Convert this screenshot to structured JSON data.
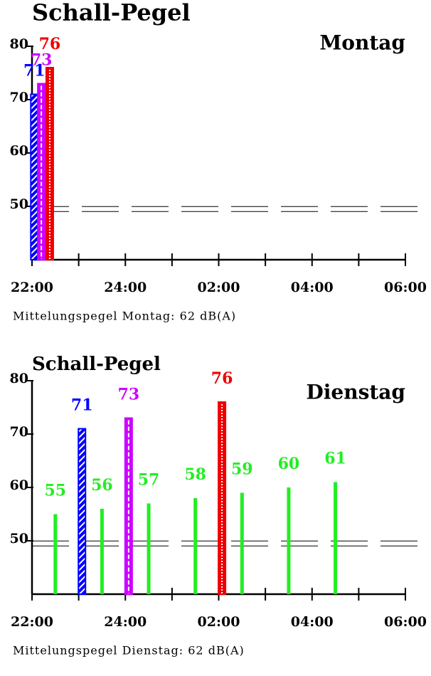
{
  "chart_data": [
    {
      "type": "bar",
      "title": "Schall-Pegel",
      "label": "Montag",
      "note": "Mittelungspegel Montag: 62 dB(A)",
      "xlim": [
        22,
        30
      ],
      "xticks": [
        {
          "value": 22,
          "label": "22:00"
        },
        {
          "value": 24,
          "label": "24:00"
        },
        {
          "value": 26,
          "label": "02:00"
        },
        {
          "value": 28,
          "label": "04:00"
        },
        {
          "value": 30,
          "label": "06:00"
        }
      ],
      "xminor": [
        23,
        25,
        27,
        29
      ],
      "ylim": [
        40,
        80
      ],
      "yticks": [
        50,
        60,
        70,
        80
      ],
      "reference_line": 49.5,
      "series": [
        {
          "color": "#0000ff",
          "style": "stripes",
          "x": [
            22.05
          ],
          "values": [
            71
          ]
        },
        {
          "color": "#cc00ff",
          "style": "dashes",
          "x": [
            22.2
          ],
          "values": [
            73
          ]
        },
        {
          "color": "#ee0000",
          "style": "dots",
          "x": [
            22.38
          ],
          "values": [
            76
          ]
        }
      ]
    },
    {
      "type": "bar",
      "title": "Schall-Pegel",
      "label": "Dienstag",
      "note": "Mittelungspegel Dienstag: 62 dB(A)",
      "xlim": [
        22,
        30
      ],
      "xticks": [
        {
          "value": 22,
          "label": "22:00"
        },
        {
          "value": 24,
          "label": "24:00"
        },
        {
          "value": 26,
          "label": "02:00"
        },
        {
          "value": 28,
          "label": "04:00"
        },
        {
          "value": 30,
          "label": "06:00"
        }
      ],
      "xminor": [
        23,
        25,
        27,
        29
      ],
      "ylim": [
        40,
        80
      ],
      "yticks": [
        50,
        60,
        70,
        80
      ],
      "reference_line": 49.5,
      "series": [
        {
          "color": "#22ee22",
          "style": "line",
          "x": [
            22.5,
            23.5,
            24.5,
            25.5,
            26.5,
            27.5,
            28.5
          ],
          "values": [
            55,
            56,
            57,
            58,
            59,
            60,
            61
          ]
        },
        {
          "color": "#0000ff",
          "style": "stripes",
          "x": [
            23.07
          ],
          "values": [
            71
          ]
        },
        {
          "color": "#cc00ff",
          "style": "dashes",
          "x": [
            24.07
          ],
          "values": [
            73
          ]
        },
        {
          "color": "#ee0000",
          "style": "dots",
          "x": [
            26.07
          ],
          "values": [
            76
          ]
        }
      ]
    }
  ]
}
